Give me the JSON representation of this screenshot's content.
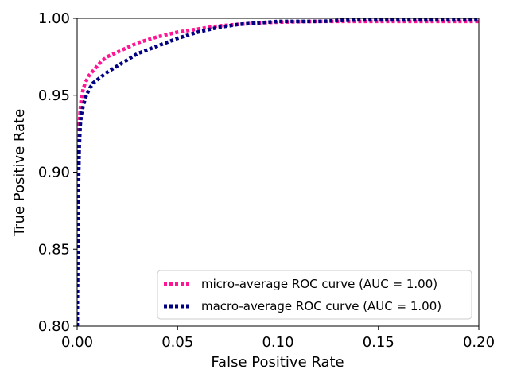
{
  "chart_data": {
    "type": "line",
    "title": "",
    "xlabel": "False Positive Rate",
    "ylabel": "True Positive Rate",
    "xlim": [
      0.0,
      0.2
    ],
    "ylim": [
      0.8,
      1.0
    ],
    "xticks": [
      "0.00",
      "0.05",
      "0.10",
      "0.15",
      "0.20"
    ],
    "yticks": [
      "0.80",
      "0.85",
      "0.90",
      "0.95",
      "1.00"
    ],
    "grid": false,
    "legend_position": "lower-right",
    "series": [
      {
        "name": "micro-average ROC curve (AUC = 1.00)",
        "color": "#ff1493",
        "x": [
          0.0,
          0.0005,
          0.001,
          0.0015,
          0.002,
          0.003,
          0.004,
          0.006,
          0.008,
          0.01,
          0.012,
          0.015,
          0.02,
          0.025,
          0.03,
          0.04,
          0.05,
          0.06,
          0.07,
          0.08,
          0.09,
          0.1,
          0.12,
          0.14,
          0.16,
          0.18,
          0.2
        ],
        "y": [
          0.8,
          0.9,
          0.93,
          0.94,
          0.947,
          0.954,
          0.958,
          0.963,
          0.966,
          0.969,
          0.972,
          0.975,
          0.978,
          0.981,
          0.984,
          0.988,
          0.991,
          0.993,
          0.995,
          0.996,
          0.997,
          0.9975,
          0.998,
          0.998,
          0.998,
          0.998,
          0.998
        ]
      },
      {
        "name": "macro-average ROC curve (AUC = 1.00)",
        "color": "#000080",
        "x": [
          0.0,
          0.0005,
          0.001,
          0.0015,
          0.002,
          0.003,
          0.004,
          0.006,
          0.008,
          0.01,
          0.012,
          0.015,
          0.02,
          0.025,
          0.03,
          0.04,
          0.05,
          0.06,
          0.07,
          0.08,
          0.09,
          0.1,
          0.12,
          0.14,
          0.16,
          0.18,
          0.2
        ],
        "y": [
          0.8,
          0.88,
          0.915,
          0.93,
          0.937,
          0.943,
          0.948,
          0.954,
          0.958,
          0.96,
          0.962,
          0.965,
          0.969,
          0.973,
          0.977,
          0.982,
          0.987,
          0.991,
          0.994,
          0.996,
          0.997,
          0.998,
          0.998,
          0.999,
          0.999,
          0.999,
          0.999
        ]
      }
    ]
  }
}
